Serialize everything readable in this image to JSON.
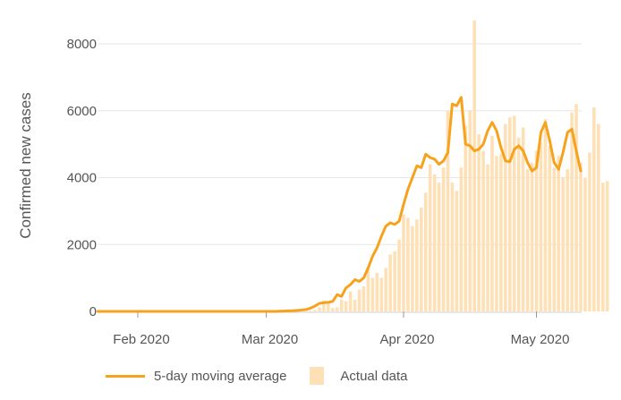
{
  "chart_data": {
    "type": "bar+line",
    "ylabel": "Confirmed new cases",
    "ylim": [
      0,
      9000
    ],
    "yticks": [
      0,
      2000,
      4000,
      6000,
      8000
    ],
    "xticks": [
      {
        "label": "Feb 2020",
        "day": 0
      },
      {
        "label": "Mar 2020",
        "day": 29
      },
      {
        "label": "Apr 2020",
        "day": 60
      },
      {
        "label": "May 2020",
        "day": 90
      }
    ],
    "x_start": "2020-01-22",
    "grid": "horizontal",
    "colors": {
      "line": "#f7a21c",
      "bars": "#fde0b6",
      "grid": "#e6e6e6"
    },
    "series": [
      {
        "name": "Actual data",
        "type": "bar",
        "values": [
          0,
          0,
          0,
          0,
          0,
          0,
          0,
          0,
          0,
          0,
          0,
          0,
          0,
          0,
          0,
          0,
          0,
          0,
          0,
          0,
          0,
          0,
          0,
          0,
          0,
          0,
          0,
          0,
          0,
          0,
          0,
          0,
          0,
          0,
          0,
          0,
          0,
          0,
          0,
          0,
          0,
          0,
          0,
          0,
          0,
          0,
          0,
          10,
          20,
          20,
          40,
          120,
          330,
          300,
          100,
          120,
          350,
          300,
          600,
          350,
          650,
          750,
          1300,
          1000,
          1150,
          1000,
          1300,
          1700,
          1800,
          2150,
          2900,
          2800,
          2550,
          2750,
          3100,
          3550,
          4400,
          4100,
          3850,
          4300,
          6000,
          3850,
          3600,
          4300,
          5550,
          6000,
          8700,
          5300,
          4800,
          4400,
          5250,
          4650,
          4700,
          5600,
          5800,
          5850,
          5200,
          5500,
          4250,
          4450,
          4800,
          5050,
          5750,
          4950,
          4300,
          4650,
          4000,
          4250,
          5950,
          6200,
          4450,
          4000,
          4750,
          6100,
          5600,
          3850,
          3900
        ]
      },
      {
        "name": "5-day moving average",
        "type": "line",
        "values": [
          0,
          0,
          0,
          0,
          0,
          0,
          0,
          0,
          0,
          0,
          0,
          0,
          0,
          0,
          0,
          0,
          0,
          0,
          0,
          0,
          0,
          0,
          0,
          0,
          0,
          0,
          0,
          0,
          0,
          0,
          0,
          0,
          0,
          0,
          0,
          0,
          0,
          0,
          0,
          0,
          0,
          5,
          10,
          15,
          20,
          30,
          40,
          60,
          100,
          160,
          240,
          260,
          270,
          300,
          500,
          450,
          700,
          800,
          950,
          900,
          1000,
          1300,
          1650,
          1900,
          2250,
          2550,
          2650,
          2600,
          2700,
          3200,
          3650,
          4000,
          4350,
          4300,
          4700,
          4600,
          4550,
          4400,
          4500,
          4750,
          6200,
          6150,
          6400,
          5000,
          4950,
          4800,
          4850,
          5000,
          5400,
          5650,
          5400,
          4900,
          4500,
          4480,
          4850,
          4950,
          4800,
          4450,
          4200,
          4300,
          5350,
          5650,
          5100,
          4450,
          4250,
          4750,
          5350,
          5450,
          4800,
          4200
        ]
      }
    ],
    "legend": [
      {
        "label": "5-day moving average",
        "kind": "line"
      },
      {
        "label": "Actual data",
        "kind": "box"
      }
    ],
    "legend_position": "bottom"
  }
}
